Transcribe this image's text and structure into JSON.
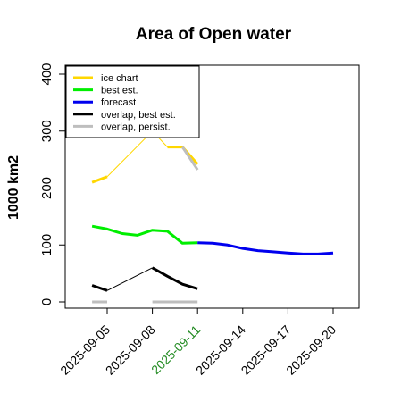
{
  "chart_data": {
    "type": "line",
    "title": "Area of Open water",
    "ylabel": "1000 km2",
    "xlabel": "",
    "ylim": [
      -5,
      420
    ],
    "yticks": [
      0,
      100,
      200,
      300,
      400
    ],
    "xlim": [
      "2025-09-04",
      "2025-09-21"
    ],
    "xticks": [
      "2025-09-05",
      "2025-09-08",
      "2025-09-11",
      "2025-09-14",
      "2025-09-17",
      "2025-09-20"
    ],
    "xtick_colors": [
      "#000000",
      "#000000",
      "#228b22",
      "#000000",
      "#000000",
      "#000000"
    ],
    "legend_position": "top-left",
    "grid": false,
    "series": [
      {
        "name": "ice chart",
        "color": "#ffd700",
        "line_width": 3,
        "segments": [
          {
            "x": [
              "2025-09-04",
              "2025-09-05"
            ],
            "y": [
              210,
              220
            ]
          },
          {
            "x": [
              "2025-09-09",
              "2025-09-10",
              "2025-09-11"
            ],
            "y": [
              272,
              272,
              242
            ]
          }
        ],
        "connectors": [
          {
            "x": [
              "2025-09-05",
              "2025-09-08"
            ],
            "y": [
              220,
              300
            ]
          },
          {
            "x": [
              "2025-09-08",
              "2025-09-09"
            ],
            "y": [
              300,
              272
            ]
          }
        ]
      },
      {
        "name": "best est.",
        "color": "#00ee00",
        "line_width": 3,
        "segments": [
          {
            "x": [
              "2025-09-04",
              "2025-09-05",
              "2025-09-06",
              "2025-09-07",
              "2025-09-08",
              "2025-09-09",
              "2025-09-10",
              "2025-09-11"
            ],
            "y": [
              133,
              128,
              120,
              117,
              126,
              124,
              103,
              104
            ]
          }
        ],
        "connectors": []
      },
      {
        "name": "forecast",
        "color": "#0000ee",
        "line_width": 3,
        "segments": [
          {
            "x": [
              "2025-09-11",
              "2025-09-12",
              "2025-09-13",
              "2025-09-14",
              "2025-09-15",
              "2025-09-16",
              "2025-09-17",
              "2025-09-18",
              "2025-09-19",
              "2025-09-20"
            ],
            "y": [
              104,
              103,
              100,
              94,
              90,
              88,
              86,
              84,
              84,
              86
            ]
          }
        ],
        "connectors": []
      },
      {
        "name": "overlap, best est.",
        "color": "#000000",
        "line_width": 3,
        "segments": [
          {
            "x": [
              "2025-09-04",
              "2025-09-05"
            ],
            "y": [
              29,
              20
            ]
          },
          {
            "x": [
              "2025-09-08",
              "2025-09-09",
              "2025-09-10",
              "2025-09-11"
            ],
            "y": [
              60,
              45,
              31,
              23
            ]
          }
        ],
        "connectors": [
          {
            "x": [
              "2025-09-05",
              "2025-09-08"
            ],
            "y": [
              20,
              60
            ]
          }
        ]
      },
      {
        "name": "overlap, persist.",
        "color": "#bebebe",
        "line_width": 3,
        "segments": [
          {
            "x": [
              "2025-09-04",
              "2025-09-05"
            ],
            "y": [
              0,
              0
            ]
          },
          {
            "x": [
              "2025-09-08",
              "2025-09-09",
              "2025-09-10",
              "2025-09-11"
            ],
            "y": [
              0,
              0,
              0,
              0
            ]
          },
          {
            "x": [
              "2025-09-10",
              "2025-09-11"
            ],
            "y": [
              272,
              232
            ]
          }
        ],
        "connectors": []
      }
    ]
  }
}
